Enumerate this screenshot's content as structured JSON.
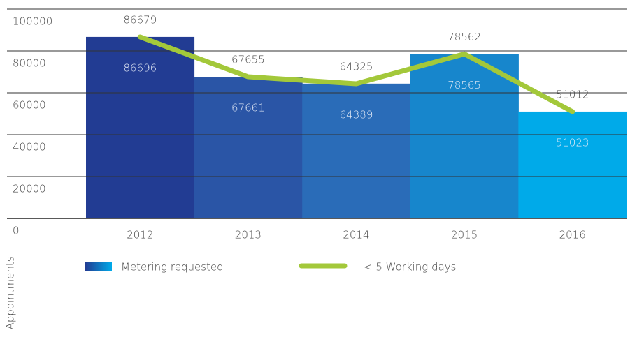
{
  "chart_data": {
    "type": "bar_line",
    "categories": [
      "2012",
      "2013",
      "2014",
      "2015",
      "2016"
    ],
    "y_label": "Appointments",
    "series": [
      {
        "name": "Metering requested",
        "type": "bar",
        "colors": [
          "#223c93",
          "#2a55a6",
          "#2a6cb8",
          "#1786cc",
          "#00aae9"
        ],
        "values": [
          86696,
          67661,
          64389,
          78565,
          51023
        ]
      },
      {
        "name": "< 5 Working days",
        "type": "line",
        "color": "#a3c83a",
        "values": [
          86679,
          67655,
          64325,
          78562,
          51012
        ]
      }
    ],
    "ylim": [
      0,
      100000
    ],
    "yticks": [
      0,
      20000,
      40000,
      60000,
      80000,
      100000
    ],
    "grid": true
  }
}
